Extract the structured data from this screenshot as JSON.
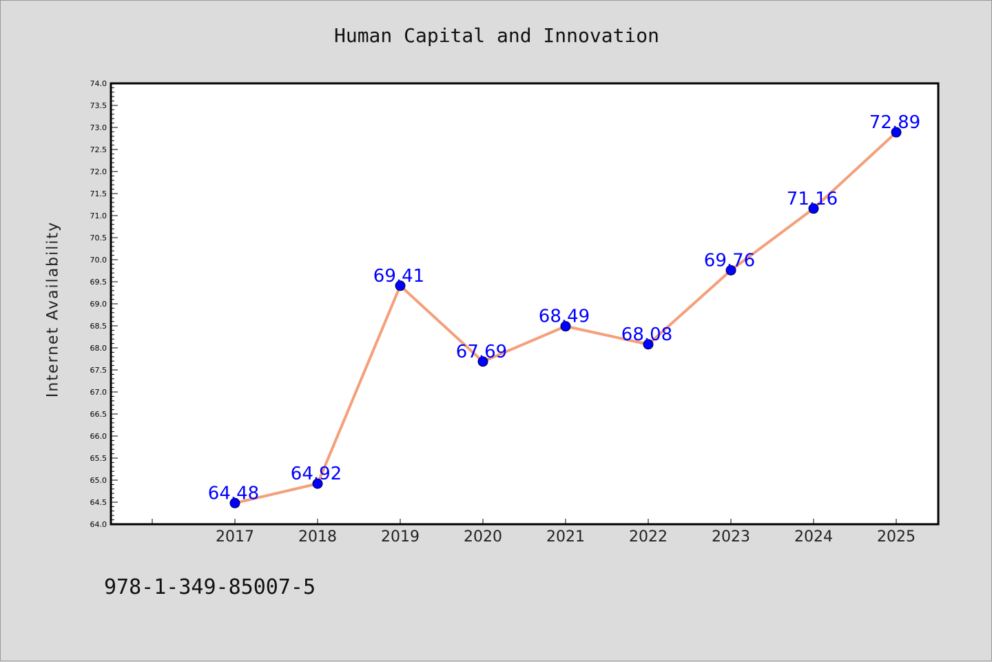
{
  "chart_data": {
    "type": "line",
    "title": "Human Capital and Innovation",
    "xlabel": "",
    "ylabel": "Internet Availability",
    "categories": [
      "2017",
      "2018",
      "2019",
      "2020",
      "2021",
      "2022",
      "2023",
      "2024",
      "2025"
    ],
    "series": [
      {
        "values": [
          64.48,
          64.92,
          69.41,
          67.69,
          68.49,
          68.08,
          69.76,
          71.16,
          72.89
        ],
        "labels": [
          "64.48",
          "64.92",
          "69.41",
          "67.69",
          "68.49",
          "68.08",
          "69.76",
          "71.16",
          "72.89"
        ],
        "line_color": "#f4a07a",
        "marker_color": "#0000ff"
      }
    ],
    "ylim": [
      64.0,
      74.0
    ],
    "y_ticks": [
      "64.0",
      "64.5",
      "65.0",
      "65.5",
      "66.0",
      "66.5",
      "67.0",
      "67.5",
      "68.0",
      "68.5",
      "69.0",
      "69.5",
      "70.0",
      "70.5",
      "71.0",
      "71.5",
      "72.0",
      "72.5",
      "73.0",
      "73.5",
      "74.0"
    ],
    "grid": false,
    "legend": "none",
    "label_color": "#0000ff"
  },
  "caption": "978-1-349-85007-5"
}
